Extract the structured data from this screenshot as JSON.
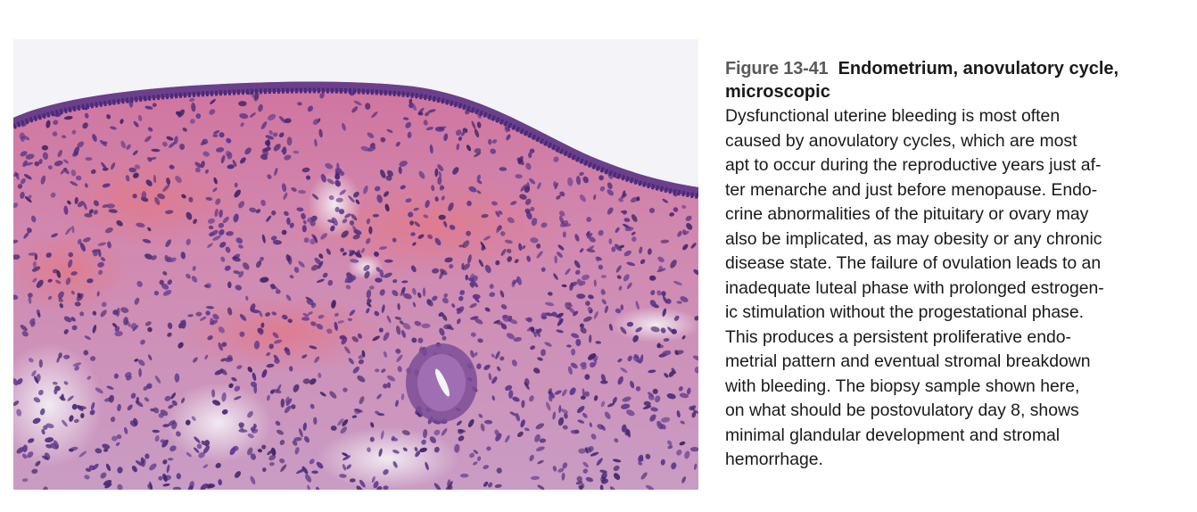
{
  "figure": {
    "label": "Figure 13-41",
    "title": "Endometrium, anovulatory cycle, microscopic",
    "image_alt": "Histology micrograph of endometrium with pink stroma, purple nuclei, surface epithelium and a small gland"
  },
  "caption_lines": [
    "Dysfunctional uterine bleeding is most often",
    "caused by anovulatory cycles, which are most",
    "apt to occur during the reproductive years just af-",
    "ter menarche and just before menopause. Endo-",
    "crine abnormalities of the pituitary or ovary may",
    "also be implicated, as may obesity or any chronic",
    "disease state. The failure of ovulation leads to an",
    "inadequate luteal phase with prolonged estrogen-",
    "ic stimulation without the progestational phase.",
    "This produces a persistent proliferative endo-",
    "metrial pattern and eventual stromal breakdown",
    "with bleeding. The biopsy sample shown here,",
    "on what should be postovulatory day 8, shows",
    "minimal glandular development and stromal",
    "hemorrhage."
  ],
  "colors": {
    "stroma": "#cf7fa6",
    "hemorrhage": "#d9788f",
    "nuclei": "#4a2a78",
    "epithelium": "#6b3f8c",
    "background": "#f4f3f7"
  }
}
